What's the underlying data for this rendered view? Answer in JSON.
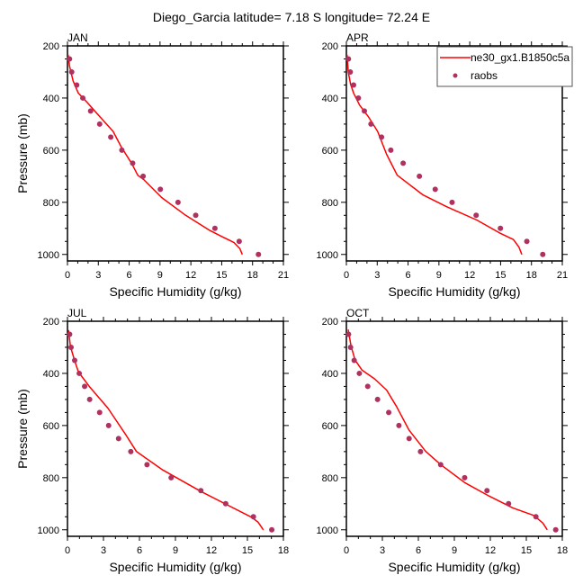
{
  "chart_data": {
    "type": "line",
    "title": "Diego_Garcia  latitude= 7.18 S longitude= 72.24 E",
    "legend": {
      "placement": "top-right",
      "panel": "APR",
      "entries": [
        {
          "name": "ne30_gx1.B1850c5a",
          "style": "line",
          "color": "#ff0000"
        },
        {
          "name": "raobs",
          "style": "marker",
          "color": "#b03060"
        }
      ]
    },
    "panels": [
      {
        "label": "JAN",
        "xlabel": "Specific Humidity (g/kg)",
        "ylabel": "Pressure (mb)",
        "xlim": [
          0,
          21
        ],
        "ylim": [
          1025,
          200
        ],
        "y_inverted": true,
        "xticks": [
          0,
          3,
          6,
          9,
          12,
          15,
          18,
          21
        ],
        "yticks": [
          200,
          400,
          600,
          800,
          1000
        ],
        "series": [
          {
            "name": "ne30_gx1.B1850c5a",
            "type": "line",
            "x": [
              0.06,
              0.2,
              0.55,
              1.05,
              1.87,
              3.04,
              4.44,
              5.23,
              6.25,
              6.83,
              7.42,
              9.17,
              11.5,
              13.84,
              15.0,
              16.18,
              16.76,
              17.0
            ],
            "y": [
              234,
              278,
              335,
              381,
              415,
              467,
              528,
              588,
              651,
              696,
              713,
              782,
              850,
              908,
              931,
              954,
              977,
              1000
            ]
          },
          {
            "name": "raobs",
            "type": "scatter",
            "x": [
              0.2,
              0.41,
              0.9,
              1.49,
              2.25,
              3.13,
              4.21,
              5.29,
              6.34,
              7.36,
              9.03,
              10.75,
              12.47,
              14.34,
              16.7,
              18.57
            ],
            "y": [
              250,
              300,
              350,
              400,
              450,
              500,
              550,
              600,
              650,
              700,
              750,
              800,
              850,
              900,
              950,
              1000
            ]
          }
        ]
      },
      {
        "label": "APR",
        "xlabel": "Specific Humidity (g/kg)",
        "ylabel": "",
        "xlim": [
          0,
          21
        ],
        "ylim": [
          1025,
          200
        ],
        "y_inverted": true,
        "xticks": [
          0,
          3,
          6,
          9,
          12,
          15,
          18,
          21
        ],
        "yticks": [
          200,
          400,
          600,
          800,
          1000
        ],
        "series": [
          {
            "name": "ne30_gx1.B1850c5a",
            "type": "line",
            "x": [
              0.06,
              0.18,
              0.41,
              0.7,
              1.29,
              2.16,
              3.04,
              3.91,
              4.94,
              7.42,
              9.75,
              12.68,
              15.02,
              16.24,
              16.77,
              17.06
            ],
            "y": [
              234,
              301,
              347,
              381,
              427,
              473,
              528,
              616,
              696,
              771,
              817,
              868,
              920,
              943,
              971,
              1000
            ]
          },
          {
            "name": "raobs",
            "type": "scatter",
            "x": [
              0.2,
              0.38,
              0.7,
              1.17,
              1.75,
              2.39,
              3.42,
              4.32,
              5.52,
              7.1,
              8.64,
              10.28,
              12.62,
              14.98,
              17.55,
              19.1
            ],
            "y": [
              250,
              300,
              350,
              400,
              450,
              500,
              550,
              600,
              650,
              700,
              750,
              800,
              850,
              900,
              950,
              1000
            ]
          }
        ]
      },
      {
        "label": "JUL",
        "xlabel": "Specific Humidity (g/kg)",
        "ylabel": "Pressure (mb)",
        "xlim": [
          0,
          18
        ],
        "ylim": [
          1025,
          200
        ],
        "y_inverted": true,
        "xticks": [
          0,
          3,
          6,
          9,
          12,
          15,
          18
        ],
        "yticks": [
          200,
          400,
          600,
          800,
          1000
        ],
        "series": [
          {
            "name": "ne30_gx1.B1850c5a",
            "type": "line",
            "x": [
              0.08,
              0.25,
              0.62,
              0.88,
              1.12,
              1.87,
              3.37,
              4.88,
              5.75,
              7.88,
              11.13,
              15.38,
              15.88,
              16.33
            ],
            "y": [
              234,
              297,
              355,
              390,
              407,
              453,
              533,
              637,
              700,
              769,
              853,
              953,
              970,
              1000
            ]
          },
          {
            "name": "raobs",
            "type": "scatter",
            "x": [
              0.18,
              0.3,
              0.6,
              0.98,
              1.43,
              1.85,
              2.68,
              3.43,
              4.26,
              5.28,
              6.63,
              8.64,
              11.12,
              13.19,
              15.5,
              17.03
            ],
            "y": [
              250,
              300,
              350,
              400,
              450,
              500,
              550,
              600,
              650,
              700,
              750,
              800,
              850,
              900,
              950,
              1000
            ]
          }
        ]
      },
      {
        "label": "OCT",
        "xlabel": "Specific Humidity (g/kg)",
        "ylabel": "",
        "xlim": [
          0,
          18
        ],
        "ylim": [
          1025,
          200
        ],
        "y_inverted": true,
        "xticks": [
          0,
          3,
          6,
          9,
          12,
          15,
          18
        ],
        "yticks": [
          200,
          400,
          600,
          800,
          1000
        ],
        "series": [
          {
            "name": "ne30_gx1.B1850c5a",
            "type": "line",
            "x": [
              0.15,
              0.4,
              0.73,
              1.3,
              2.35,
              3.35,
              4.18,
              5.23,
              6.61,
              7.86,
              9.86,
              11.87,
              13.87,
              15.62,
              16.37,
              16.75
            ],
            "y": [
              232,
              297,
              349,
              387,
              421,
              464,
              527,
              618,
              699,
              750,
              819,
              870,
              916,
              945,
              974,
              1000
            ]
          },
          {
            "name": "raobs",
            "type": "scatter",
            "x": [
              0.18,
              0.35,
              0.65,
              1.08,
              1.78,
              2.6,
              3.53,
              4.38,
              5.23,
              6.18,
              7.86,
              9.86,
              11.72,
              13.52,
              15.8,
              17.45
            ],
            "y": [
              250,
              300,
              350,
              400,
              450,
              500,
              550,
              600,
              650,
              700,
              750,
              800,
              850,
              900,
              950,
              1000
            ]
          }
        ]
      }
    ],
    "colors": {
      "model_line": "#ff0000",
      "obs_marker": "#b03060",
      "axis": "#000000"
    },
    "grid": false
  }
}
